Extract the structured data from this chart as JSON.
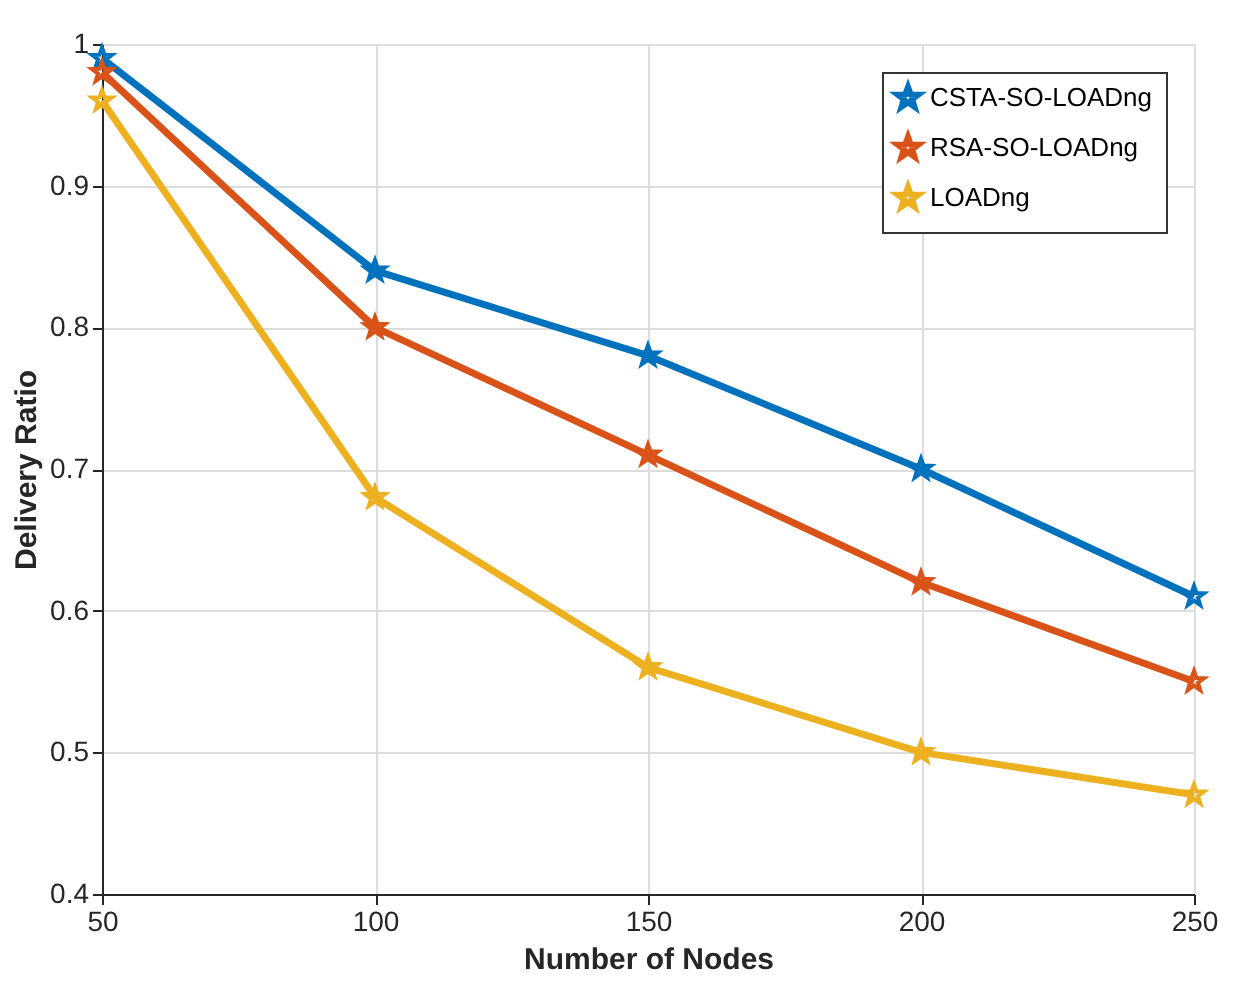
{
  "chart_data": {
    "type": "line",
    "xlabel": "Number of Nodes",
    "ylabel": "Delivery Ratio",
    "x": [
      50,
      100,
      150,
      200,
      250
    ],
    "series": [
      {
        "name": "CSTA-SO-LOADng",
        "color": "#0072bd",
        "values": [
          0.99,
          0.84,
          0.78,
          0.7,
          0.61
        ]
      },
      {
        "name": "RSA-SO-LOADng",
        "color": "#d95319",
        "values": [
          0.98,
          0.8,
          0.71,
          0.62,
          0.55
        ]
      },
      {
        "name": "LOADng",
        "color": "#edb120",
        "values": [
          0.96,
          0.68,
          0.56,
          0.5,
          0.47
        ]
      }
    ],
    "xlim": [
      50,
      250
    ],
    "xticks": [
      50,
      100,
      150,
      200,
      250
    ],
    "ylim": [
      0.4,
      1
    ],
    "yticks": [
      0.4,
      0.5,
      0.6,
      0.7,
      0.8,
      0.9,
      {
        "value": 1,
        "label": "1"
      }
    ],
    "grid": true,
    "legend": "top right",
    "marker": "star",
    "line_style": "solid"
  }
}
